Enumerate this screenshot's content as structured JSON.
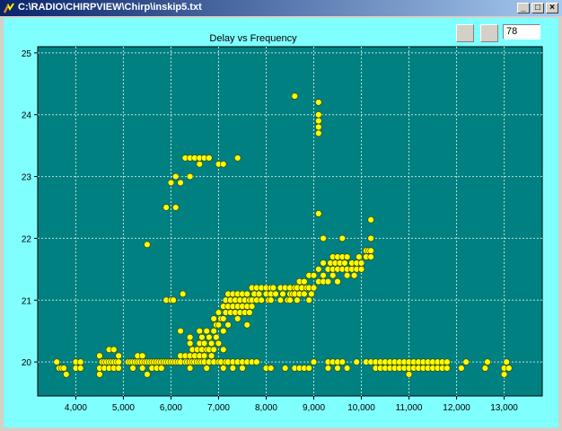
{
  "window": {
    "title": "C:\\RADIO\\CHIRPVIEW\\Chirp\\inskip5.txt",
    "controls": {
      "minimize": "_",
      "maximize": "□",
      "close": "×"
    }
  },
  "toolbar": {
    "value_field": "78"
  },
  "colors": {
    "client_bg": "#80ffff",
    "plot_bg": "#008080",
    "marker": "#ffff00",
    "grid": "#c0e0e0"
  },
  "chart_data": {
    "type": "scatter",
    "title": "Delay vs Frequency",
    "xlabel": "",
    "ylabel": "",
    "xlim": [
      3200,
      13800
    ],
    "ylim": [
      19.45,
      25.1
    ],
    "x_ticks": [
      "4,000",
      "5,000",
      "6,000",
      "7,000",
      "8,000",
      "9,000",
      "10,000",
      "11,000",
      "12,000",
      "13,000"
    ],
    "y_ticks": [
      "20",
      "21",
      "22",
      "23",
      "24",
      "25"
    ],
    "grid": true,
    "points": [
      [
        3600,
        20
      ],
      [
        3650,
        19.9
      ],
      [
        3700,
        19.9
      ],
      [
        3750,
        19.9
      ],
      [
        3800,
        19.8
      ],
      [
        4000,
        20
      ],
      [
        4000,
        19.9
      ],
      [
        4100,
        20
      ],
      [
        4100,
        19.9
      ],
      [
        4500,
        20.1
      ],
      [
        4500,
        19.9
      ],
      [
        4500,
        19.8
      ],
      [
        4550,
        20
      ],
      [
        4600,
        20
      ],
      [
        4600,
        19.9
      ],
      [
        4650,
        20
      ],
      [
        4700,
        20.2
      ],
      [
        4700,
        20
      ],
      [
        4700,
        19.9
      ],
      [
        4750,
        20
      ],
      [
        4800,
        20.2
      ],
      [
        4800,
        20
      ],
      [
        4800,
        19.9
      ],
      [
        4850,
        20
      ],
      [
        4900,
        20
      ],
      [
        4900,
        19.9
      ],
      [
        4900,
        20.1
      ],
      [
        5100,
        20
      ],
      [
        5150,
        20
      ],
      [
        5200,
        20
      ],
      [
        5200,
        19.9
      ],
      [
        5250,
        20
      ],
      [
        5300,
        20.1
      ],
      [
        5300,
        20
      ],
      [
        5350,
        20
      ],
      [
        5400,
        20.1
      ],
      [
        5400,
        20
      ],
      [
        5400,
        19.9
      ],
      [
        5450,
        20
      ],
      [
        5500,
        20
      ],
      [
        5500,
        19.8
      ],
      [
        5500,
        21.9
      ],
      [
        5550,
        20
      ],
      [
        5600,
        20
      ],
      [
        5600,
        19.9
      ],
      [
        5650,
        20
      ],
      [
        5700,
        20
      ],
      [
        5700,
        19.9
      ],
      [
        5750,
        20
      ],
      [
        5800,
        20
      ],
      [
        5800,
        19.9
      ],
      [
        5850,
        20
      ],
      [
        5900,
        20
      ],
      [
        5900,
        22.5
      ],
      [
        5900,
        21
      ],
      [
        5950,
        20
      ],
      [
        6000,
        20
      ],
      [
        6000,
        21
      ],
      [
        6000,
        22.9
      ],
      [
        6050,
        20
      ],
      [
        6050,
        21
      ],
      [
        6100,
        20
      ],
      [
        6100,
        23
      ],
      [
        6100,
        22.5
      ],
      [
        6150,
        20
      ],
      [
        6200,
        20.5
      ],
      [
        6200,
        20
      ],
      [
        6200,
        20.1
      ],
      [
        6200,
        22.9
      ],
      [
        6250,
        21.1
      ],
      [
        6300,
        20
      ],
      [
        6300,
        20.1
      ],
      [
        6300,
        23.3
      ],
      [
        6350,
        20
      ],
      [
        6400,
        20.4
      ],
      [
        6400,
        20.3
      ],
      [
        6400,
        20.1
      ],
      [
        6400,
        20
      ],
      [
        6400,
        19.9
      ],
      [
        6400,
        23
      ],
      [
        6400,
        23.3
      ],
      [
        6450,
        20.2
      ],
      [
        6450,
        20
      ],
      [
        6500,
        20.1
      ],
      [
        6500,
        20
      ],
      [
        6500,
        23.3
      ],
      [
        6550,
        20.2
      ],
      [
        6550,
        20
      ],
      [
        6600,
        20.5
      ],
      [
        6600,
        20.3
      ],
      [
        6600,
        20.1
      ],
      [
        6600,
        20
      ],
      [
        6600,
        23.3
      ],
      [
        6600,
        23.2
      ],
      [
        6650,
        20.4
      ],
      [
        6650,
        20.2
      ],
      [
        6650,
        20
      ],
      [
        6700,
        20.3
      ],
      [
        6700,
        20.1
      ],
      [
        6700,
        20
      ],
      [
        6700,
        23.3
      ],
      [
        6750,
        20.5
      ],
      [
        6750,
        20.2
      ],
      [
        6750,
        19.9
      ],
      [
        6800,
        20.4
      ],
      [
        6800,
        20.2
      ],
      [
        6800,
        20
      ],
      [
        6800,
        23.3
      ],
      [
        6850,
        20.3
      ],
      [
        6850,
        20.1
      ],
      [
        6900,
        20.7
      ],
      [
        6900,
        20.5
      ],
      [
        6900,
        20.2
      ],
      [
        6900,
        20
      ],
      [
        6950,
        20.6
      ],
      [
        6950,
        20.4
      ],
      [
        7000,
        20.8
      ],
      [
        7000,
        20.6
      ],
      [
        7000,
        20.3
      ],
      [
        7000,
        20
      ],
      [
        7000,
        23.2
      ],
      [
        7050,
        20.7
      ],
      [
        7050,
        20
      ],
      [
        7100,
        20.9
      ],
      [
        7100,
        20.7
      ],
      [
        7100,
        20.5
      ],
      [
        7100,
        20.2
      ],
      [
        7100,
        19.9
      ],
      [
        7100,
        23.2
      ],
      [
        7150,
        21
      ],
      [
        7150,
        20.8
      ],
      [
        7150,
        20
      ],
      [
        7200,
        21.1
      ],
      [
        7200,
        20.9
      ],
      [
        7200,
        20.6
      ],
      [
        7200,
        20
      ],
      [
        7250,
        21
      ],
      [
        7250,
        20.8
      ],
      [
        7300,
        21.1
      ],
      [
        7300,
        20.9
      ],
      [
        7300,
        20
      ],
      [
        7300,
        19.9
      ],
      [
        7350,
        21
      ],
      [
        7350,
        20.8
      ],
      [
        7400,
        21.1
      ],
      [
        7400,
        20.9
      ],
      [
        7400,
        20.7
      ],
      [
        7400,
        20
      ],
      [
        7400,
        23.3
      ],
      [
        7450,
        21
      ],
      [
        7450,
        20.8
      ],
      [
        7500,
        21.1
      ],
      [
        7500,
        20.9
      ],
      [
        7500,
        20
      ],
      [
        7500,
        19.9
      ],
      [
        7550,
        21
      ],
      [
        7550,
        20.8
      ],
      [
        7600,
        21.1
      ],
      [
        7600,
        20.9
      ],
      [
        7600,
        20.6
      ],
      [
        7600,
        20
      ],
      [
        7650,
        21
      ],
      [
        7650,
        20.8
      ],
      [
        7700,
        21.2
      ],
      [
        7700,
        21
      ],
      [
        7700,
        20.9
      ],
      [
        7700,
        20
      ],
      [
        7700,
        20
      ],
      [
        7750,
        21.1
      ],
      [
        7800,
        21.2
      ],
      [
        7800,
        21
      ],
      [
        7800,
        20
      ],
      [
        7850,
        21.1
      ],
      [
        7900,
        21.2
      ],
      [
        7900,
        21
      ],
      [
        8000,
        21.2
      ],
      [
        8000,
        21.1
      ],
      [
        8000,
        19.9
      ],
      [
        8050,
        21
      ],
      [
        8100,
        21.2
      ],
      [
        8100,
        21.1
      ],
      [
        8100,
        21
      ],
      [
        8100,
        19.9
      ],
      [
        8150,
        21.2
      ],
      [
        8200,
        21.1
      ],
      [
        8300,
        21.2
      ],
      [
        8300,
        21
      ],
      [
        8350,
        21.1
      ],
      [
        8400,
        21.2
      ],
      [
        8400,
        19.9
      ],
      [
        8450,
        21
      ],
      [
        8500,
        21.1
      ],
      [
        8500,
        21.2
      ],
      [
        8500,
        21
      ],
      [
        8550,
        21.1
      ],
      [
        8600,
        21.2
      ],
      [
        8600,
        21.1
      ],
      [
        8600,
        19.9
      ],
      [
        8600,
        24.3
      ],
      [
        8650,
        21
      ],
      [
        8650,
        21.2
      ],
      [
        8700,
        21.3
      ],
      [
        8700,
        21.1
      ],
      [
        8700,
        19.9
      ],
      [
        8750,
        21.2
      ],
      [
        8800,
        21.3
      ],
      [
        8800,
        21.1
      ],
      [
        8800,
        19.9
      ],
      [
        8850,
        21.2
      ],
      [
        8900,
        21.4
      ],
      [
        8900,
        21.2
      ],
      [
        8900,
        21
      ],
      [
        8900,
        19.9
      ],
      [
        8950,
        21.1
      ],
      [
        9000,
        21.4
      ],
      [
        9000,
        21.2
      ],
      [
        9000,
        20
      ],
      [
        9100,
        21.5
      ],
      [
        9100,
        21.3
      ],
      [
        9100,
        22.4
      ],
      [
        9100,
        24.2
      ],
      [
        9100,
        24
      ],
      [
        9100,
        23.9
      ],
      [
        9100,
        23.8
      ],
      [
        9100,
        23.7
      ],
      [
        9200,
        21.6
      ],
      [
        9200,
        21.4
      ],
      [
        9200,
        21.3
      ],
      [
        9200,
        22
      ],
      [
        9300,
        21.5
      ],
      [
        9300,
        21.3
      ],
      [
        9300,
        20
      ],
      [
        9300,
        19.9
      ],
      [
        9350,
        21.6
      ],
      [
        9400,
        21.7
      ],
      [
        9400,
        21.5
      ],
      [
        9400,
        21.4
      ],
      [
        9400,
        20
      ],
      [
        9450,
        21.6
      ],
      [
        9500,
        21.7
      ],
      [
        9500,
        21.5
      ],
      [
        9500,
        21.3
      ],
      [
        9500,
        20
      ],
      [
        9500,
        19.9
      ],
      [
        9550,
        21.6
      ],
      [
        9600,
        21.7
      ],
      [
        9600,
        21.5
      ],
      [
        9600,
        22
      ],
      [
        9600,
        20
      ],
      [
        9650,
        21.6
      ],
      [
        9700,
        21.7
      ],
      [
        9700,
        21.5
      ],
      [
        9700,
        21.4
      ],
      [
        9700,
        19.9
      ],
      [
        9800,
        21.5
      ],
      [
        9800,
        21.6
      ],
      [
        9850,
        21.4
      ],
      [
        9900,
        21.6
      ],
      [
        9900,
        21.5
      ],
      [
        9900,
        20
      ],
      [
        9950,
        21.7
      ],
      [
        10000,
        21.5
      ],
      [
        10000,
        21.6
      ],
      [
        10100,
        21.8
      ],
      [
        10100,
        21.7
      ],
      [
        10100,
        20
      ],
      [
        10150,
        21.8
      ],
      [
        10200,
        22.3
      ],
      [
        10200,
        22
      ],
      [
        10200,
        21.8
      ],
      [
        10200,
        21.7
      ],
      [
        10200,
        20
      ],
      [
        10300,
        20
      ],
      [
        10300,
        19.9
      ],
      [
        10400,
        20
      ],
      [
        10400,
        19.9
      ],
      [
        10500,
        20
      ],
      [
        10500,
        19.9
      ],
      [
        10600,
        20
      ],
      [
        10600,
        19.9
      ],
      [
        10700,
        20
      ],
      [
        10700,
        19.9
      ],
      [
        10800,
        20
      ],
      [
        10800,
        19.9
      ],
      [
        10900,
        20
      ],
      [
        10900,
        19.9
      ],
      [
        11000,
        20
      ],
      [
        11000,
        19.9
      ],
      [
        11000,
        19.8
      ],
      [
        11100,
        20
      ],
      [
        11100,
        19.9
      ],
      [
        11200,
        20
      ],
      [
        11200,
        19.9
      ],
      [
        11300,
        20
      ],
      [
        11300,
        19.9
      ],
      [
        11400,
        20
      ],
      [
        11400,
        19.9
      ],
      [
        11500,
        20
      ],
      [
        11500,
        19.9
      ],
      [
        11600,
        20
      ],
      [
        11600,
        19.9
      ],
      [
        11700,
        20
      ],
      [
        11700,
        19.9
      ],
      [
        11800,
        20
      ],
      [
        11800,
        19.9
      ],
      [
        12100,
        19.9
      ],
      [
        12200,
        20
      ],
      [
        12600,
        19.9
      ],
      [
        12650,
        20
      ],
      [
        13000,
        19.9
      ],
      [
        13050,
        20
      ],
      [
        13000,
        19.8
      ],
      [
        13100,
        19.9
      ]
    ]
  }
}
